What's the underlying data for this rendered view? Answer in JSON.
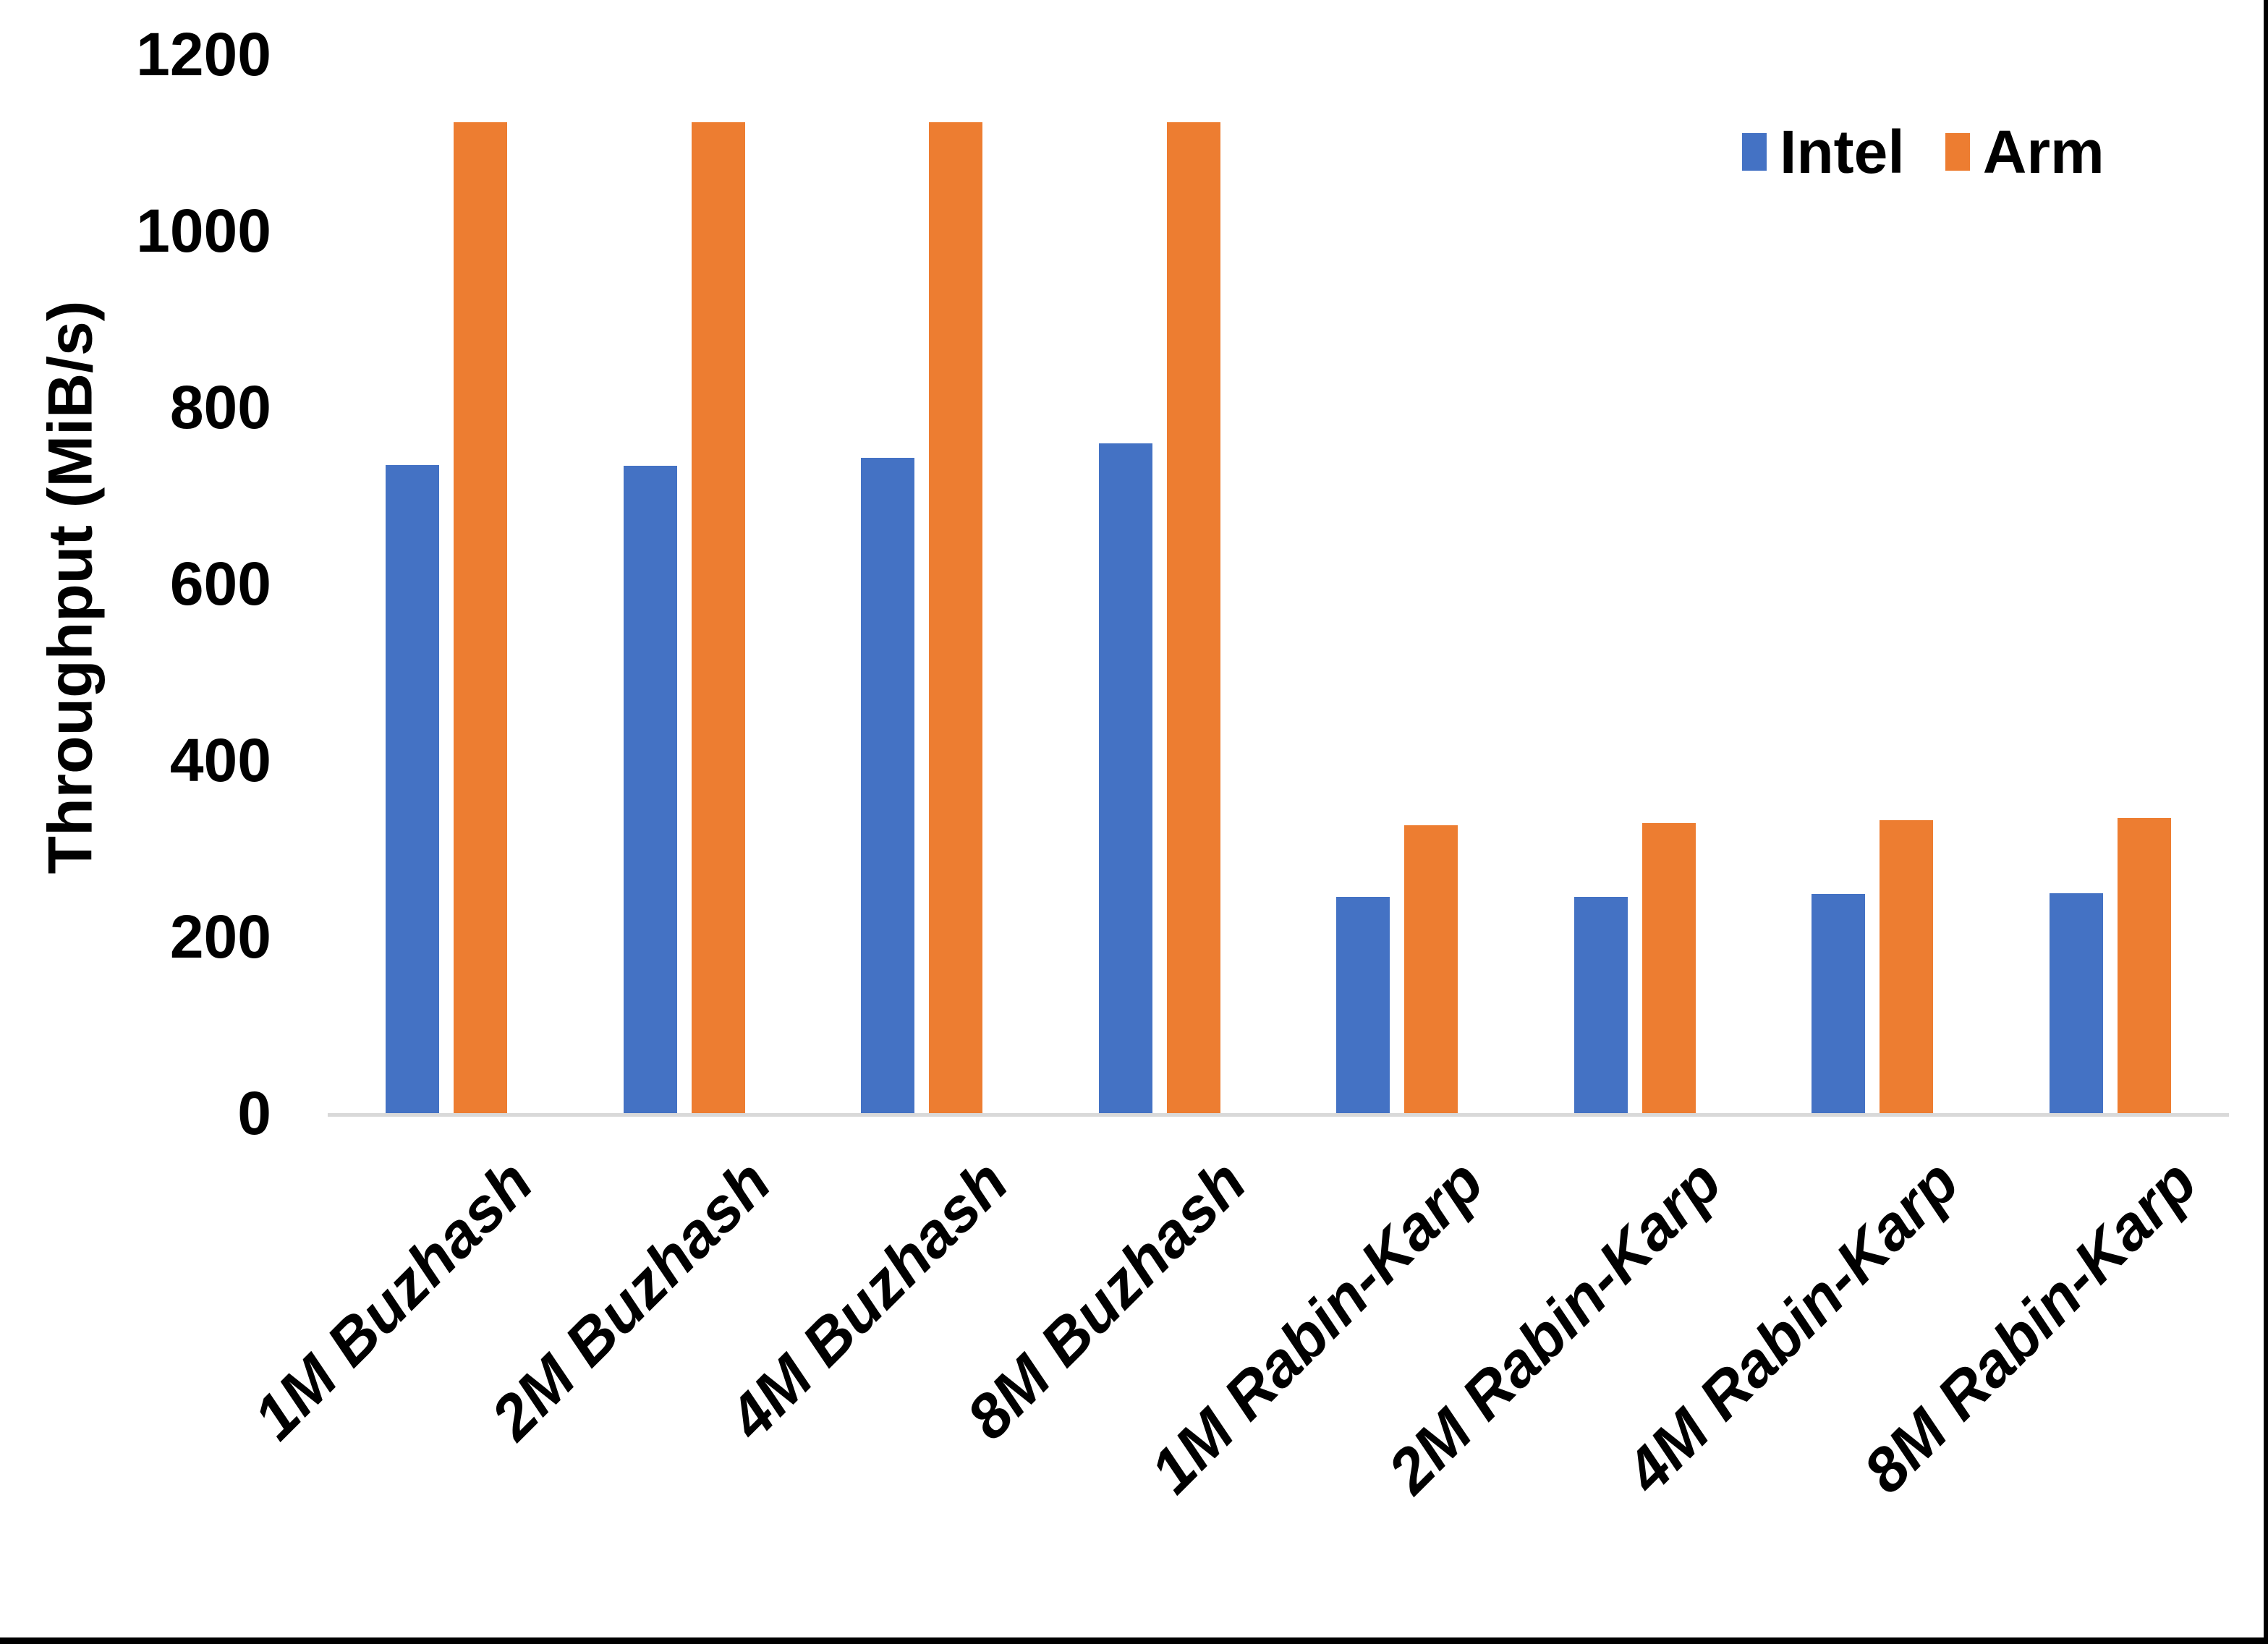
{
  "chart_data": {
    "type": "bar",
    "title": "",
    "xlabel": "",
    "ylabel": "Throughput (MiB/s)",
    "categories": [
      "1M Buzhash",
      "2M Buzhash",
      "4M Buzhash",
      "8M Buzhash",
      "1M Rabin-Karp",
      "2M Rabin-Karp",
      "4M Rabin-Karp",
      "8M Rabin-Karp"
    ],
    "series": [
      {
        "name": "Intel",
        "color": "#4472C4",
        "values": [
          736,
          735,
          744,
          761,
          247,
          247,
          250,
          251
        ]
      },
      {
        "name": "Arm",
        "color": "#ED7D31",
        "values": [
          1125,
          1125,
          1125,
          1125,
          328,
          330,
          334,
          336
        ]
      }
    ],
    "ylim": [
      0,
      1200
    ],
    "yticks": [
      0,
      200,
      400,
      600,
      800,
      1000,
      1200
    ],
    "grid": false,
    "legend_position": "top-right"
  },
  "colors": {
    "background": "#FFFFFF",
    "axis_line": "#D9D9D9",
    "text": "#000000",
    "page_border": "#000000"
  }
}
